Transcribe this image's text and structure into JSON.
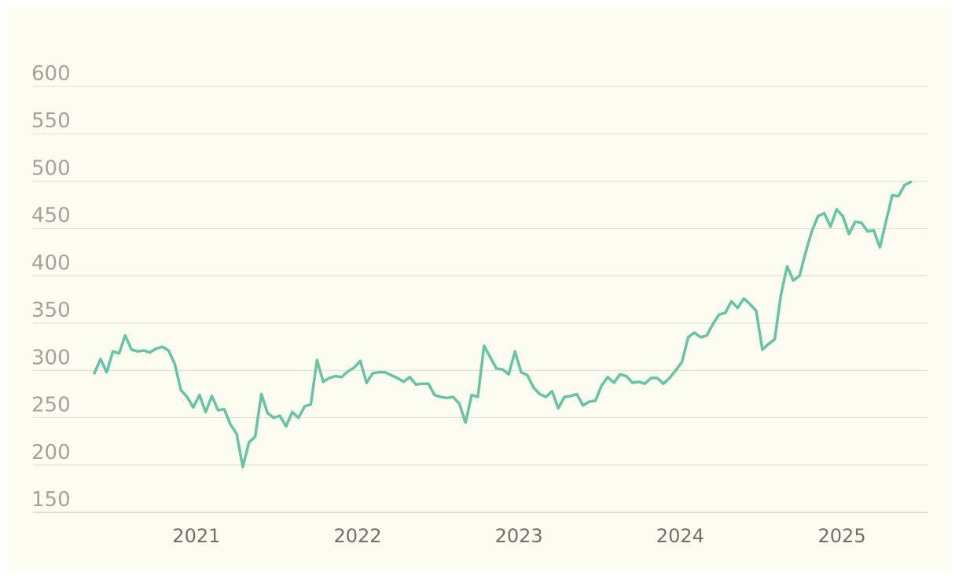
{
  "chart_data": {
    "type": "line",
    "title": "",
    "xlabel": "",
    "ylabel": "",
    "ylim": [
      150,
      650
    ],
    "xlim": [
      "2020-05-15",
      "2025-06-10"
    ],
    "grid": true,
    "y_ticks": [
      "600",
      "550",
      "500",
      "450",
      "400",
      "350",
      "300",
      "250",
      "200",
      "150"
    ],
    "x_ticks": [
      {
        "label": "2021",
        "date": "2021-01-01"
      },
      {
        "label": "2022",
        "date": "2022-01-01"
      },
      {
        "label": "2023",
        "date": "2023-01-01"
      },
      {
        "label": "2024",
        "date": "2024-01-01"
      },
      {
        "label": "2025",
        "date": "2025-01-01"
      }
    ],
    "line_color": "#66c4a5",
    "series": [
      {
        "points": [
          [
            "2020-05-15",
            297
          ],
          [
            "2020-05-29",
            312
          ],
          [
            "2020-06-12",
            298
          ],
          [
            "2020-06-26",
            320
          ],
          [
            "2020-07-10",
            318
          ],
          [
            "2020-07-24",
            337
          ],
          [
            "2020-08-07",
            322
          ],
          [
            "2020-08-21",
            320
          ],
          [
            "2020-09-04",
            321
          ],
          [
            "2020-09-18",
            319
          ],
          [
            "2020-10-02",
            323
          ],
          [
            "2020-10-16",
            325
          ],
          [
            "2020-10-30",
            321
          ],
          [
            "2020-11-13",
            307
          ],
          [
            "2020-11-27",
            279
          ],
          [
            "2020-12-11",
            272
          ],
          [
            "2020-12-25",
            261
          ],
          [
            "2021-01-08",
            274
          ],
          [
            "2021-01-22",
            256
          ],
          [
            "2021-02-05",
            273
          ],
          [
            "2021-02-19",
            258
          ],
          [
            "2021-03-05",
            259
          ],
          [
            "2021-03-19",
            243
          ],
          [
            "2021-04-02",
            233
          ],
          [
            "2021-04-16",
            198
          ],
          [
            "2021-04-30",
            224
          ],
          [
            "2021-05-14",
            230
          ],
          [
            "2021-05-28",
            275
          ],
          [
            "2021-06-11",
            255
          ],
          [
            "2021-06-25",
            250
          ],
          [
            "2021-07-09",
            252
          ],
          [
            "2021-07-23",
            241
          ],
          [
            "2021-08-06",
            256
          ],
          [
            "2021-08-20",
            250
          ],
          [
            "2021-09-03",
            262
          ],
          [
            "2021-09-17",
            264
          ],
          [
            "2021-10-01",
            311
          ],
          [
            "2021-10-15",
            288
          ],
          [
            "2021-10-29",
            292
          ],
          [
            "2021-11-12",
            294
          ],
          [
            "2021-11-26",
            293
          ],
          [
            "2021-12-10",
            299
          ],
          [
            "2021-12-24",
            303
          ],
          [
            "2022-01-07",
            310
          ],
          [
            "2022-01-21",
            287
          ],
          [
            "2022-02-04",
            297
          ],
          [
            "2022-02-18",
            298
          ],
          [
            "2022-03-04",
            298
          ],
          [
            "2022-03-18",
            295
          ],
          [
            "2022-04-01",
            292
          ],
          [
            "2022-04-15",
            288
          ],
          [
            "2022-04-29",
            293
          ],
          [
            "2022-05-13",
            285
          ],
          [
            "2022-05-27",
            286
          ],
          [
            "2022-06-10",
            286
          ],
          [
            "2022-06-24",
            274
          ],
          [
            "2022-07-08",
            272
          ],
          [
            "2022-07-22",
            271
          ],
          [
            "2022-08-05",
            272
          ],
          [
            "2022-08-19",
            265
          ],
          [
            "2022-09-02",
            245
          ],
          [
            "2022-09-16",
            274
          ],
          [
            "2022-09-30",
            272
          ],
          [
            "2022-10-14",
            326
          ],
          [
            "2022-10-28",
            314
          ],
          [
            "2022-11-11",
            302
          ],
          [
            "2022-11-25",
            301
          ],
          [
            "2022-12-09",
            296
          ],
          [
            "2022-12-23",
            320
          ],
          [
            "2023-01-06",
            298
          ],
          [
            "2023-01-20",
            295
          ],
          [
            "2023-02-03",
            282
          ],
          [
            "2023-02-17",
            275
          ],
          [
            "2023-03-03",
            272
          ],
          [
            "2023-03-17",
            278
          ],
          [
            "2023-03-31",
            260
          ],
          [
            "2023-04-14",
            272
          ],
          [
            "2023-04-28",
            273
          ],
          [
            "2023-05-12",
            275
          ],
          [
            "2023-05-26",
            263
          ],
          [
            "2023-06-09",
            267
          ],
          [
            "2023-06-23",
            268
          ],
          [
            "2023-07-07",
            284
          ],
          [
            "2023-07-21",
            293
          ],
          [
            "2023-08-04",
            287
          ],
          [
            "2023-08-18",
            296
          ],
          [
            "2023-09-01",
            294
          ],
          [
            "2023-09-15",
            287
          ],
          [
            "2023-09-29",
            288
          ],
          [
            "2023-10-13",
            286
          ],
          [
            "2023-10-27",
            292
          ],
          [
            "2023-11-10",
            292
          ],
          [
            "2023-11-24",
            286
          ],
          [
            "2023-12-08",
            292
          ],
          [
            "2023-12-22",
            300
          ],
          [
            "2024-01-05",
            309
          ],
          [
            "2024-01-19",
            335
          ],
          [
            "2024-02-02",
            340
          ],
          [
            "2024-02-16",
            335
          ],
          [
            "2024-03-01",
            337
          ],
          [
            "2024-03-15",
            349
          ],
          [
            "2024-03-29",
            359
          ],
          [
            "2024-04-12",
            361
          ],
          [
            "2024-04-26",
            373
          ],
          [
            "2024-05-10",
            366
          ],
          [
            "2024-05-24",
            376
          ],
          [
            "2024-06-07",
            370
          ],
          [
            "2024-06-21",
            363
          ],
          [
            "2024-07-05",
            322
          ],
          [
            "2024-07-19",
            328
          ],
          [
            "2024-08-02",
            333
          ],
          [
            "2024-08-16",
            380
          ],
          [
            "2024-08-30",
            410
          ],
          [
            "2024-09-13",
            395
          ],
          [
            "2024-09-27",
            400
          ],
          [
            "2024-10-11",
            425
          ],
          [
            "2024-10-25",
            447
          ],
          [
            "2024-11-08",
            463
          ],
          [
            "2024-11-22",
            466
          ],
          [
            "2024-12-06",
            452
          ],
          [
            "2024-12-20",
            470
          ],
          [
            "2025-01-03",
            463
          ],
          [
            "2025-01-17",
            444
          ],
          [
            "2025-01-31",
            457
          ],
          [
            "2025-02-14",
            456
          ],
          [
            "2025-02-28",
            447
          ],
          [
            "2025-03-14",
            448
          ],
          [
            "2025-03-28",
            430
          ],
          [
            "2025-04-11",
            458
          ],
          [
            "2025-04-25",
            485
          ],
          [
            "2025-05-09",
            484
          ],
          [
            "2025-05-23",
            496
          ],
          [
            "2025-06-06",
            499
          ]
        ]
      }
    ]
  }
}
